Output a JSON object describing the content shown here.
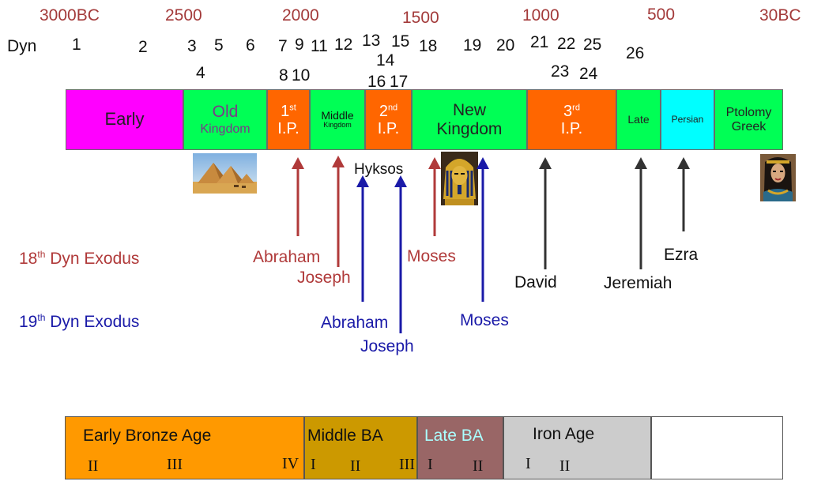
{
  "years": [
    "3000BC",
    "2500",
    "2000",
    "1500",
    "1000",
    "500",
    "30BC"
  ],
  "dyn_label": "Dyn",
  "dynasties": [
    "1",
    "2",
    "3",
    "5",
    "6",
    "4",
    "7",
    "9",
    "11",
    "12",
    "13",
    "15",
    "14",
    "8",
    "10",
    "16",
    "17",
    "18",
    "19",
    "20",
    "21",
    "22",
    "25",
    "23",
    "24",
    "26"
  ],
  "periods": {
    "early": "Early",
    "old_1": "Old",
    "old_2": "Kingdom",
    "fip_1": "1",
    "fip_sup": "st",
    "fip_2": "I.P.",
    "middle_1": "Middle",
    "middle_2": "Kingdom",
    "sip_1": "2",
    "sip_sup": "nd",
    "sip_2": "I.P.",
    "new_1": "New",
    "new_2": "Kingdom",
    "tip_1": "3",
    "tip_sup": "rd",
    "tip_2": "I.P.",
    "late": "Late",
    "persian": "Persian",
    "ptol_1": "Ptolomy",
    "ptol_2": "Greek"
  },
  "hyksos": "Hyksos",
  "exodus18_num": "18",
  "exodus18_sup": "th",
  "exodus18_text": " Dyn Exodus",
  "exodus19_num": "19",
  "exodus19_sup": "th",
  "exodus19_text": " Dyn Exodus",
  "red_labels": {
    "abraham": "Abraham",
    "joseph": "Joseph",
    "moses": "Moses"
  },
  "blue_labels": {
    "abraham": "Abraham",
    "joseph": "Joseph",
    "moses": "Moses"
  },
  "black_labels": {
    "david": "David",
    "jeremiah": "Jeremiah",
    "ezra": "Ezra"
  },
  "bronze_ages": {
    "early": "Early Bronze Age",
    "middle": "Middle BA",
    "late": "Late BA",
    "iron": "Iron Age"
  },
  "roman": [
    "II",
    "III",
    "IV",
    "I",
    "II",
    "III",
    "I",
    "II",
    "I",
    "II"
  ],
  "colors": {
    "early": "#ff00ff",
    "kingdom": "#00ff55",
    "intermediate": "#ff6600",
    "persian": "#00ffff",
    "red_arrow": "#b03a3a",
    "blue_arrow": "#1a1aa8",
    "black_arrow": "#333333",
    "early_bronze": "#ff9900",
    "middle_bronze": "#cc9900",
    "late_bronze": "#996666",
    "iron": "#cccccc"
  }
}
